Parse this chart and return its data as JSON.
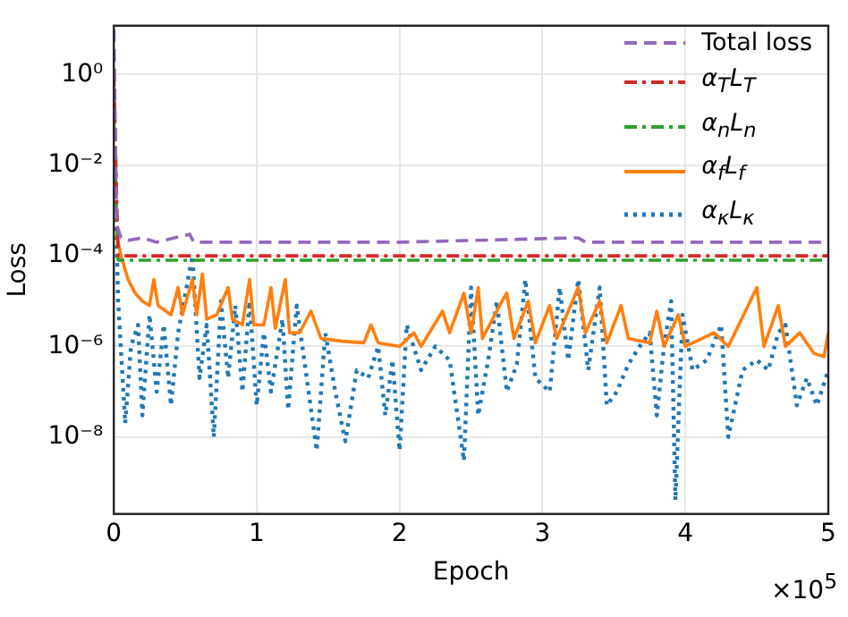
{
  "chart_data": {
    "type": "line",
    "xlabel": "Epoch",
    "ylabel": "Loss",
    "log": "y",
    "grid": true,
    "legend": "top right",
    "xlim": [
      0,
      5
    ],
    "xticks": [
      0,
      1,
      2,
      3,
      4,
      5
    ],
    "ylim": [
      2e-10,
      12
    ],
    "yticks": [
      {
        "value": 1,
        "label": "10⁰"
      },
      {
        "value": 0.01,
        "label": "10⁻²"
      },
      {
        "value": 0.0001,
        "label": "10⁻⁴"
      },
      {
        "value": 1e-06,
        "label": "10⁻⁶"
      },
      {
        "value": 1e-08,
        "label": "10⁻⁸"
      }
    ],
    "annotations": [
      "×10$^{5}$"
    ],
    "series": [
      {
        "name": "Total loss",
        "color": "#9467bd",
        "line_style": "dashed",
        "x": [
          0,
          0.02,
          0.05,
          0.1,
          0.2,
          0.3,
          0.53,
          0.56,
          1,
          2,
          3.25,
          3.3,
          5
        ],
        "values": [
          10,
          0.0005,
          0.00025,
          0.00022,
          0.00025,
          0.0002,
          0.0003,
          0.0002,
          0.0002,
          0.0002,
          0.00025,
          0.0002,
          0.0002
        ]
      },
      {
        "name": "α$_{T}$L$_{T}$",
        "color": "#d62728",
        "line_style": "dashdot",
        "x": [
          0,
          0.03,
          5
        ],
        "values": [
          1,
          0.0001,
          0.0001
        ]
      },
      {
        "name": "α$_{n}$L$_{n}$",
        "color": "#2ca02c",
        "line_style": "dashdot",
        "x": [
          0,
          0.03,
          5
        ],
        "values": [
          0.1,
          8e-05,
          8e-05
        ]
      },
      {
        "name": "α$_{f}$L$_{f}$",
        "color": "#ff7f0e",
        "line_style": "solid",
        "x": [
          0.02,
          0.05,
          0.1,
          0.15,
          0.2,
          0.25,
          0.28,
          0.31,
          0.4,
          0.45,
          0.48,
          0.55,
          0.58,
          0.62,
          0.65,
          0.72,
          0.8,
          0.83,
          0.9,
          0.95,
          0.98,
          1.05,
          1.1,
          1.13,
          1.2,
          1.23,
          1.3,
          1.38,
          1.45,
          1.6,
          1.75,
          1.8,
          1.85,
          2,
          2.1,
          2.15,
          2.3,
          2.35,
          2.45,
          2.5,
          2.55,
          2.58,
          2.7,
          2.75,
          2.8,
          2.9,
          2.95,
          3.05,
          3.1,
          3.25,
          3.3,
          3.4,
          3.45,
          3.55,
          3.6,
          3.75,
          3.8,
          3.85,
          3.95,
          4,
          4.2,
          4.3,
          4.5,
          4.55,
          4.65,
          4.7,
          4.8,
          4.9,
          4.97,
          5
        ],
        "values": [
          0.0003,
          0.0001,
          3e-05,
          1.5e-05,
          1e-05,
          8e-06,
          3e-05,
          8e-06,
          5e-06,
          2e-05,
          5e-06,
          3e-05,
          5e-06,
          4e-05,
          4e-06,
          5e-06,
          2e-05,
          4e-06,
          3e-06,
          3e-05,
          3e-06,
          3e-06,
          2e-05,
          2.5e-06,
          3e-05,
          2e-06,
          2e-06,
          6e-06,
          1.5e-06,
          1.3e-06,
          1.2e-06,
          3e-06,
          1.2e-06,
          1e-06,
          2e-06,
          1e-06,
          6e-06,
          2e-06,
          1.5e-05,
          2e-06,
          2e-05,
          1.5e-06,
          8e-06,
          1.5e-05,
          1.5e-06,
          1e-05,
          1.2e-06,
          8e-06,
          1.5e-06,
          2e-05,
          2e-06,
          1e-05,
          1.2e-06,
          8e-06,
          1.5e-06,
          1.2e-06,
          6e-06,
          1e-06,
          5e-06,
          1e-06,
          2e-06,
          1e-06,
          2e-05,
          1e-06,
          8e-06,
          1e-06,
          2e-06,
          7e-07,
          6e-07,
          2e-06
        ]
      },
      {
        "name": "α$_{κ}$L$_{κ}$",
        "color": "#1f77b4",
        "line_style": "dotted",
        "x": [
          0,
          0.03,
          0.08,
          0.12,
          0.17,
          0.2,
          0.25,
          0.3,
          0.35,
          0.4,
          0.45,
          0.55,
          0.6,
          0.65,
          0.7,
          0.75,
          0.8,
          0.85,
          0.9,
          0.95,
          1,
          1.05,
          1.1,
          1.18,
          1.22,
          1.28,
          1.35,
          1.42,
          1.48,
          1.55,
          1.62,
          1.7,
          1.78,
          1.85,
          1.9,
          1.95,
          2,
          2.05,
          2.15,
          2.25,
          2.35,
          2.45,
          2.5,
          2.55,
          2.62,
          2.68,
          2.75,
          2.82,
          2.88,
          2.95,
          3.05,
          3.12,
          3.18,
          3.25,
          3.32,
          3.4,
          3.45,
          3.52,
          3.6,
          3.68,
          3.75,
          3.8,
          3.85,
          3.9,
          3.93,
          3.98,
          4.05,
          4.15,
          4.25,
          4.3,
          4.4,
          4.5,
          4.58,
          4.65,
          4.7,
          4.78,
          4.85,
          4.92,
          5
        ],
        "values": [
          0.1,
          1e-05,
          2e-08,
          1e-06,
          3e-06,
          3e-08,
          5e-06,
          1e-07,
          3e-06,
          5e-08,
          2e-06,
          0.0001,
          2e-07,
          3e-06,
          1e-08,
          1e-05,
          2e-07,
          8e-06,
          1e-07,
          1e-05,
          5e-08,
          2e-06,
          1e-07,
          4e-06,
          4e-08,
          8e-06,
          2e-07,
          5e-09,
          2e-06,
          1e-07,
          8e-09,
          3e-07,
          2e-07,
          1e-06,
          3e-08,
          5e-07,
          5e-09,
          3e-06,
          3e-07,
          1e-06,
          5e-07,
          3e-09,
          2e-05,
          3e-08,
          5e-07,
          1e-05,
          1e-07,
          4e-07,
          3e-05,
          2e-07,
          1e-07,
          2e-05,
          5e-07,
          3e-05,
          3e-07,
          2e-05,
          5e-08,
          1e-07,
          4e-07,
          1e-06,
          2e-06,
          3e-08,
          1e-06,
          1e-05,
          4e-10,
          5e-06,
          3e-07,
          5e-07,
          3e-06,
          1e-08,
          3e-07,
          5e-07,
          3e-07,
          2e-06,
          3e-06,
          5e-08,
          2e-07,
          5e-08,
          3e-07
        ]
      }
    ]
  }
}
